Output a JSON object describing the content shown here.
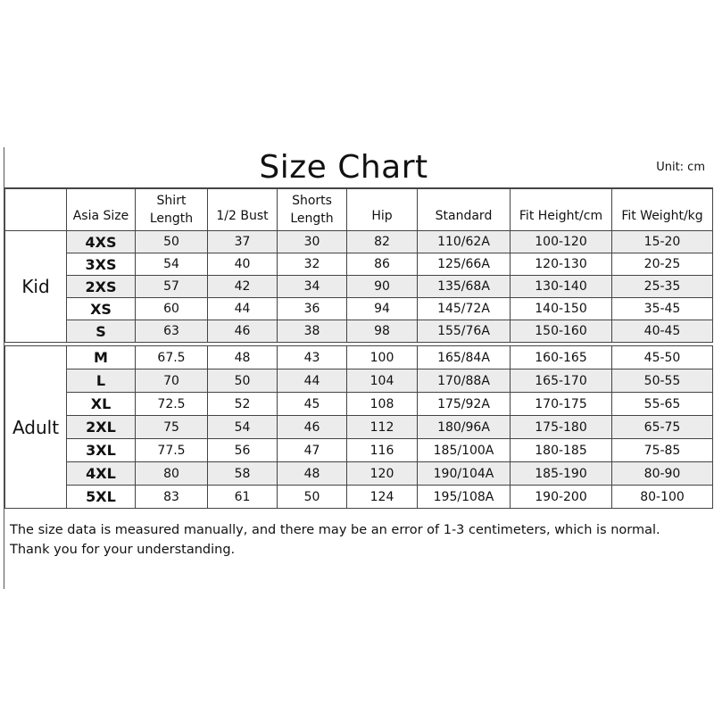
{
  "title": "Size Chart",
  "unit": "Unit: cm",
  "headers": [
    {
      "line1": "",
      "line2": "Asia Size"
    },
    {
      "line1": "Shirt",
      "line2": "Length"
    },
    {
      "line1": "",
      "line2": "1/2 Bust"
    },
    {
      "line1": "Shorts",
      "line2": "Length"
    },
    {
      "line1": "",
      "line2": "Hip"
    },
    {
      "line1": "",
      "line2": "Standard"
    },
    {
      "line1": "",
      "line2": "Fit Height/cm"
    },
    {
      "line1": "",
      "line2": "Fit Weight/kg"
    }
  ],
  "groups": [
    {
      "label": "Kid",
      "rows": [
        [
          "4XS",
          "50",
          "37",
          "30",
          "82",
          "110/62A",
          "100-120",
          "15-20"
        ],
        [
          "3XS",
          "54",
          "40",
          "32",
          "86",
          "125/66A",
          "120-130",
          "20-25"
        ],
        [
          "2XS",
          "57",
          "42",
          "34",
          "90",
          "135/68A",
          "130-140",
          "25-35"
        ],
        [
          "XS",
          "60",
          "44",
          "36",
          "94",
          "145/72A",
          "140-150",
          "35-45"
        ],
        [
          "S",
          "63",
          "46",
          "38",
          "98",
          "155/76A",
          "150-160",
          "40-45"
        ]
      ]
    },
    {
      "label": "Adult",
      "rows": [
        [
          "M",
          "67.5",
          "48",
          "43",
          "100",
          "165/84A",
          "160-165",
          "45-50"
        ],
        [
          "L",
          "70",
          "50",
          "44",
          "104",
          "170/88A",
          "165-170",
          "50-55"
        ],
        [
          "XL",
          "72.5",
          "52",
          "45",
          "108",
          "175/92A",
          "170-175",
          "55-65"
        ],
        [
          "2XL",
          "75",
          "54",
          "46",
          "112",
          "180/96A",
          "175-180",
          "65-75"
        ],
        [
          "3XL",
          "77.5",
          "56",
          "47",
          "116",
          "185/100A",
          "180-185",
          "75-85"
        ],
        [
          "4XL",
          "80",
          "58",
          "48",
          "120",
          "190/104A",
          "185-190",
          "80-90"
        ],
        [
          "5XL",
          "83",
          "61",
          "50",
          "124",
          "195/108A",
          "190-200",
          "80-100"
        ]
      ]
    }
  ],
  "footer": {
    "line1": "The size data is measured manually, and there may be an error of 1-3 centimeters, which is normal.",
    "line2": "Thank you for your understanding."
  },
  "colors": {
    "row_shade": "#ececec",
    "border": "#444444"
  }
}
